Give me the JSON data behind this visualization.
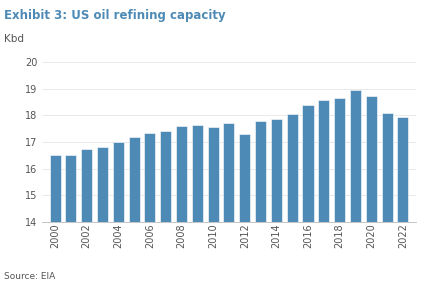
{
  "title": "Exhibit 3: US oil refining capacity",
  "ylabel": "Kbd",
  "source": "Source: EIA",
  "bar_color": "#4d8ab5",
  "background_color": "#ffffff",
  "ylim": [
    14,
    20
  ],
  "yticks": [
    14,
    15,
    16,
    17,
    18,
    19,
    20
  ],
  "years": [
    2000,
    2001,
    2002,
    2003,
    2004,
    2005,
    2006,
    2007,
    2008,
    2009,
    2010,
    2011,
    2012,
    2013,
    2014,
    2015,
    2016,
    2017,
    2018,
    2019,
    2020,
    2021,
    2022
  ],
  "values": [
    16.5,
    16.5,
    16.75,
    16.8,
    17.0,
    17.2,
    17.35,
    17.4,
    17.6,
    17.65,
    17.55,
    17.7,
    17.3,
    17.8,
    17.85,
    18.05,
    18.4,
    18.6,
    18.65,
    18.95,
    18.75,
    18.1,
    17.95
  ],
  "xtick_years": [
    2000,
    2002,
    2004,
    2006,
    2008,
    2010,
    2012,
    2014,
    2016,
    2018,
    2020,
    2022
  ],
  "title_color": "#4d8ab5",
  "axis_label_color": "#555555",
  "tick_label_color": "#555555",
  "title_fontsize": 8.5,
  "ylabel_fontsize": 7.5,
  "tick_fontsize": 7,
  "source_fontsize": 6.5
}
